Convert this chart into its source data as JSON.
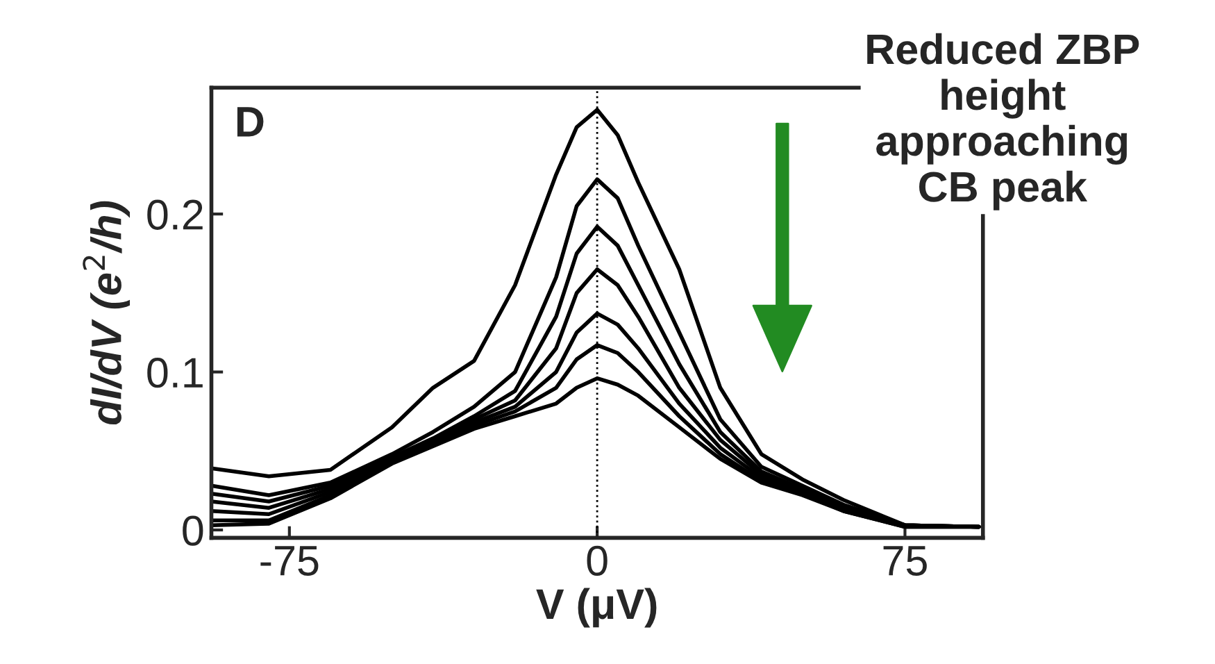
{
  "chart_data": {
    "type": "line",
    "xlabel": "V (μV)",
    "ylabel": "dI/dV (e$^{2}$/h)",
    "x": [
      -94,
      -80,
      -65,
      -50,
      -40,
      -30,
      -20,
      -10,
      -5,
      0,
      5,
      10,
      20,
      30,
      40,
      50,
      60,
      75,
      93
    ],
    "series": [
      {
        "color": "#000000",
        "values": [
          0.039,
          0.034,
          0.038,
          0.065,
          0.09,
          0.107,
          0.155,
          0.225,
          0.255,
          0.266,
          0.25,
          0.22,
          0.165,
          0.09,
          0.048,
          0.032,
          0.019,
          0.003,
          0.002
        ]
      },
      {
        "color": "#000000",
        "values": [
          0.028,
          0.022,
          0.03,
          0.048,
          0.062,
          0.078,
          0.1,
          0.16,
          0.205,
          0.222,
          0.21,
          0.18,
          0.125,
          0.07,
          0.04,
          0.028,
          0.016,
          0.003,
          0.002
        ]
      },
      {
        "color": "#000000",
        "values": [
          0.023,
          0.018,
          0.028,
          0.046,
          0.058,
          0.072,
          0.088,
          0.135,
          0.175,
          0.192,
          0.18,
          0.155,
          0.105,
          0.062,
          0.037,
          0.026,
          0.015,
          0.003,
          0.002
        ]
      },
      {
        "color": "#000000",
        "values": [
          0.018,
          0.014,
          0.026,
          0.045,
          0.056,
          0.07,
          0.082,
          0.115,
          0.15,
          0.165,
          0.155,
          0.135,
          0.09,
          0.057,
          0.035,
          0.025,
          0.014,
          0.003,
          0.002
        ]
      },
      {
        "color": "#000000",
        "values": [
          0.012,
          0.01,
          0.024,
          0.044,
          0.055,
          0.068,
          0.078,
          0.1,
          0.125,
          0.137,
          0.13,
          0.115,
          0.08,
          0.052,
          0.033,
          0.024,
          0.013,
          0.003,
          0.002
        ]
      },
      {
        "color": "#000000",
        "values": [
          0.006,
          0.006,
          0.022,
          0.043,
          0.054,
          0.066,
          0.075,
          0.09,
          0.108,
          0.117,
          0.112,
          0.1,
          0.072,
          0.048,
          0.031,
          0.023,
          0.012,
          0.002,
          0.002
        ]
      },
      {
        "color": "#000000",
        "values": [
          0.003,
          0.004,
          0.02,
          0.042,
          0.053,
          0.064,
          0.072,
          0.08,
          0.09,
          0.096,
          0.092,
          0.085,
          0.065,
          0.045,
          0.03,
          0.022,
          0.012,
          0.002,
          0.002
        ]
      }
    ],
    "xlim": [
      -94,
      94
    ],
    "ylim": [
      -0.005,
      0.28
    ],
    "xticks": [
      -75,
      0,
      75
    ],
    "yticks": [
      {
        "value": 0,
        "label": "0"
      },
      {
        "value": 0.1,
        "label": "0.1"
      },
      {
        "value": 0.2,
        "label": "0.2"
      }
    ],
    "ref_lines": [
      {
        "axis": "x",
        "value": 0,
        "line_style": "dotted",
        "color": "#000000"
      }
    ],
    "annotations": [
      "D",
      "Reduced ZBP\nheight\napproaching\nCB peak"
    ],
    "grid": false,
    "legend": false,
    "marker": "none",
    "line_style": "solid"
  }
}
